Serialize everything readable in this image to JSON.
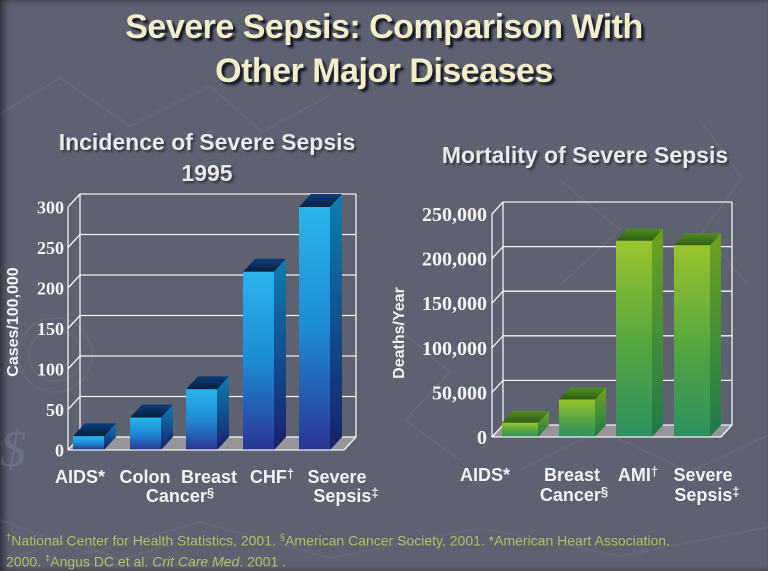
{
  "slide": {
    "title_line1": "Severe Sepsis: Comparison With",
    "title_line2": "Other Major Diseases",
    "background_color": "#5d6170",
    "title_color": "#f2eec9",
    "footnote_color": "#b2c164",
    "grid_color": "#ffffff",
    "floor_color": "#96969a",
    "label_color": "#f2f2f2",
    "watermark_glyph": "$"
  },
  "chart_data": [
    {
      "id": "incidence",
      "type": "bar",
      "title_line1": "Incidence of Severe Sepsis",
      "title_line2": "1995",
      "ylabel": "Cases/100,000",
      "categories": [
        "AIDS*",
        "Colon Cancer§",
        "Breast",
        "CHF†",
        "Severe Sepsis‡"
      ],
      "values": [
        17,
        40,
        75,
        220,
        300
      ],
      "ylim": [
        0,
        300
      ],
      "ytick_step": 50,
      "ytick_labels": [
        "0",
        "50",
        "100",
        "150",
        "200",
        "250",
        "300"
      ],
      "display_labels": [
        "AIDS*",
        "Colon",
        "Breast",
        "CHF†",
        "Severe",
        "Cancer§",
        "Sepsis‡"
      ],
      "legend": "none",
      "grid": "on",
      "colors": {
        "front": [
          "#2ab5ee",
          "#1e8bd4",
          "#2b3594"
        ],
        "side": [
          "#0c7fb0",
          "#17206e"
        ],
        "top": [
          "#0d3e7c",
          "#06203f"
        ]
      }
    },
    {
      "id": "mortality",
      "type": "bar",
      "title_line1": "Mortality of Severe Sepsis",
      "ylabel": "Deaths/Year",
      "categories": [
        "AIDS*",
        "Breast Cancer§",
        "AMI†",
        "Severe Sepsis‡"
      ],
      "values": [
        16000,
        42000,
        220000,
        215000
      ],
      "ylim": [
        0,
        250000
      ],
      "ytick_step": 50000,
      "ytick_labels": [
        "0",
        "50,000",
        "100,000",
        "150,000",
        "200,000",
        "250,000"
      ],
      "display_labels": [
        "AIDS*",
        "Breast",
        "AMI†",
        "Severe",
        "Cancer§",
        "Sepsis‡"
      ],
      "legend": "none",
      "grid": "on",
      "colors": {
        "front": [
          "#9ac42e",
          "#58a83e",
          "#2e9062"
        ],
        "side": [
          "#6ea31f",
          "#1e7a4c"
        ],
        "top": [
          "#4f8f1e",
          "#2f5d15"
        ]
      }
    }
  ],
  "footnote": {
    "parts": [
      {
        "sup": "†"
      },
      {
        "text": "National Center for Health Statistics, 2001. "
      },
      {
        "sup": "§"
      },
      {
        "text": "American Cancer Society, 2001. *American Heart Association."
      },
      {
        "br": true
      },
      {
        "text": "2000. "
      },
      {
        "sup": "‡"
      },
      {
        "text": "Angus DC et al. "
      },
      {
        "italic": "Crit Care Med"
      },
      {
        "text": ". 2001 ."
      }
    ]
  }
}
